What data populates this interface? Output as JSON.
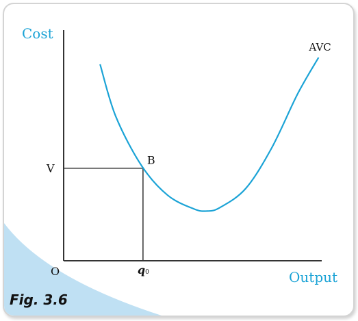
{
  "figure": {
    "caption": "Fig. 3.6"
  },
  "colors": {
    "curve": "#1ba3d6",
    "axis_label": "#1ba3d6",
    "axis": "#333333",
    "text": "#111111",
    "corner_shape": "#bfe0f3"
  },
  "chart_data": {
    "type": "line",
    "title": "",
    "xlabel": "Output",
    "ylabel": "Cost",
    "xlim": [
      0,
      10
    ],
    "ylim": [
      0,
      10
    ],
    "grid": false,
    "legend": "none",
    "series": [
      {
        "name": "AVC",
        "x": [
          1.4,
          2.0,
          3.0,
          4.0,
          5.0,
          5.5,
          6.0,
          7.0,
          8.0,
          9.0,
          9.8
        ],
        "y": [
          8.7,
          6.4,
          4.2,
          2.9,
          2.3,
          2.2,
          2.35,
          3.2,
          5.0,
          7.4,
          9.0
        ]
      }
    ],
    "point": {
      "label": "B",
      "x": 3.05,
      "y": 4.1
    },
    "origin_label": "O",
    "x_marker": {
      "label": "q",
      "subscript": "0",
      "value": 3.05
    },
    "y_marker": {
      "label": "V",
      "value": 4.1
    }
  }
}
